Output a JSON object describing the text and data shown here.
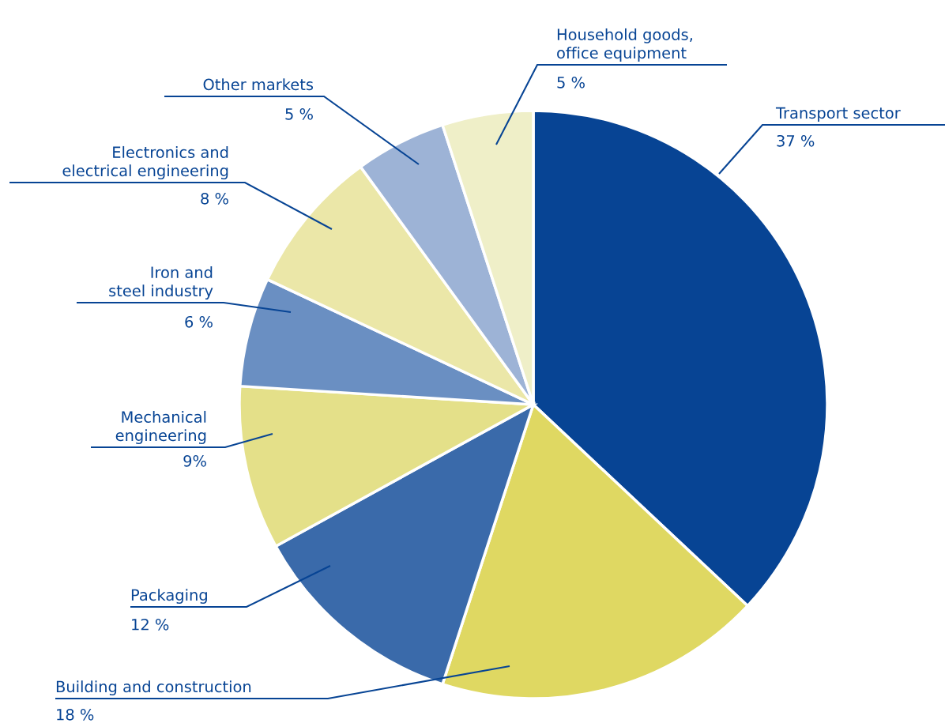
{
  "chart_data": {
    "type": "pie",
    "categories": [
      "Transport sector",
      "Building and construction",
      "Packaging",
      "Mechanical\nengineering",
      "Iron and\nsteel industry",
      "Electronics and\nelectrical engineering",
      "Other markets",
      "Household goods,\noffice equipment"
    ],
    "values": [
      37,
      18,
      12,
      9,
      6,
      8,
      5,
      5
    ],
    "colors": [
      "#074494",
      "#dfd862",
      "#3a6aaa",
      "#e4e089",
      "#6a8fc2",
      "#ebe7a8",
      "#9db3d6",
      "#efefc8"
    ],
    "value_labels": [
      "37 %",
      "18 %",
      "12 %",
      "9%",
      "6 %",
      "8 %",
      "5 %",
      "5 %"
    ]
  }
}
